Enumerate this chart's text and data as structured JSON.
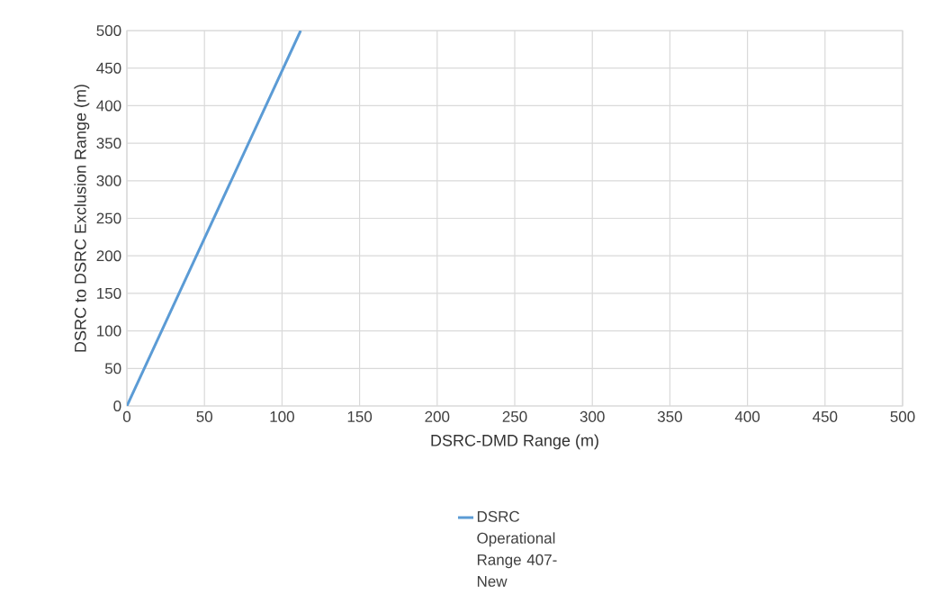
{
  "chart_data": {
    "type": "line",
    "xlabel": "DSRC-DMD Range (m)",
    "ylabel": "DSRC to DSRC Exclusion Range (m)",
    "xlim": [
      0,
      500
    ],
    "ylim": [
      0,
      500
    ],
    "xticks": [
      0,
      50,
      100,
      150,
      200,
      250,
      300,
      350,
      400,
      450,
      500
    ],
    "yticks": [
      0,
      50,
      100,
      150,
      200,
      250,
      300,
      350,
      400,
      450,
      500
    ],
    "grid": true,
    "legend": "bottom",
    "marker": "none",
    "line_style": "solid",
    "series": [
      {
        "name": "DSRC Operational Range 407-New",
        "color": "#5b9bd5",
        "x": [
          0,
          112
        ],
        "values": [
          0,
          500
        ]
      }
    ]
  }
}
